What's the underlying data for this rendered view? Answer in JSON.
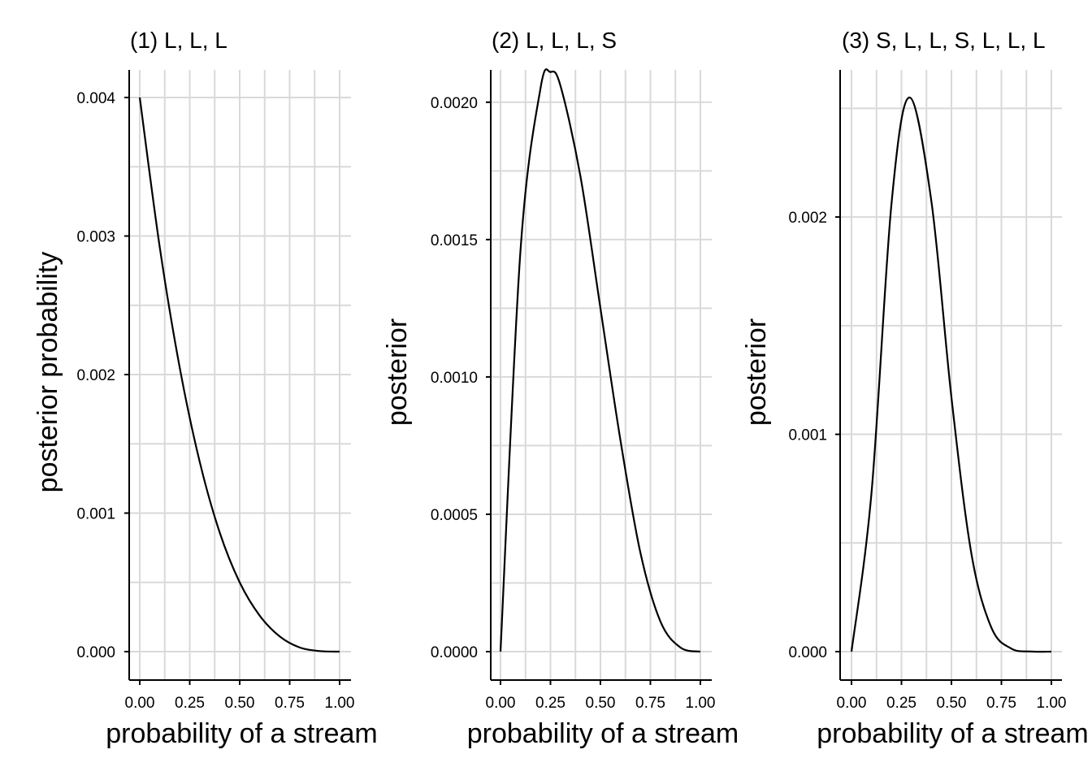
{
  "chart_data": [
    {
      "type": "line",
      "title": "(1) L, L, L",
      "xlabel": "probability of a stream",
      "ylabel": "posterior probability",
      "xlim": [
        0,
        1
      ],
      "ylim": [
        0,
        0.004
      ],
      "x_ticks": [
        0,
        0.25,
        0.5,
        0.75,
        1
      ],
      "x_tick_labels": [
        "0.00",
        "0.25",
        "0.50",
        "0.75",
        "1.00"
      ],
      "y_ticks": [
        0,
        0.001,
        0.002,
        0.003,
        0.004
      ],
      "y_tick_labels": [
        "0.000",
        "0.001",
        "0.002",
        "0.003",
        "0.004"
      ],
      "grid": true,
      "x": [
        0,
        0.1,
        0.2,
        0.3,
        0.4,
        0.5,
        0.6,
        0.7,
        0.8,
        0.9,
        1
      ],
      "y": [
        0.004,
        0.00292,
        0.00205,
        0.00137,
        0.00086,
        0.0005,
        0.00026,
        0.00011,
        3e-05,
        4e-06,
        0
      ]
    },
    {
      "type": "line",
      "title": "(2) L, L, L, S",
      "xlabel": "probability of a stream",
      "ylabel": "posterior",
      "xlim": [
        0,
        1
      ],
      "ylim": [
        0,
        0.0021
      ],
      "x_ticks": [
        0,
        0.25,
        0.5,
        0.75,
        1
      ],
      "x_tick_labels": [
        "0.00",
        "0.25",
        "0.50",
        "0.75",
        "1.00"
      ],
      "y_ticks": [
        0,
        0.0005,
        0.001,
        0.0015,
        0.002
      ],
      "y_tick_labels": [
        "0.0000",
        "0.0005",
        "0.0010",
        "0.0015",
        "0.0020"
      ],
      "grid": true,
      "x": [
        0,
        0.1,
        0.2,
        0.25,
        0.3,
        0.4,
        0.5,
        0.6,
        0.7,
        0.8,
        0.9,
        1
      ],
      "y": [
        0,
        0.00146,
        0.00205,
        0.00211,
        0.00206,
        0.00173,
        0.00125,
        0.00077,
        0.00036,
        0.00011,
        1.5e-05,
        0
      ]
    },
    {
      "type": "line",
      "title": "(3) S, L, L, S, L, L, L",
      "xlabel": "probability of a stream",
      "ylabel": "posterior",
      "xlim": [
        0,
        1
      ],
      "ylim": [
        0,
        0.00255
      ],
      "x_ticks": [
        0,
        0.25,
        0.5,
        0.75,
        1
      ],
      "x_tick_labels": [
        "0.00",
        "0.25",
        "0.50",
        "0.75",
        "1.00"
      ],
      "y_ticks": [
        0,
        0.001,
        0.002
      ],
      "y_tick_labels": [
        "0.000",
        "0.001",
        "0.002"
      ],
      "grid": true,
      "x": [
        0,
        0.1,
        0.2,
        0.29,
        0.4,
        0.5,
        0.6,
        0.7,
        0.8,
        0.9,
        1
      ],
      "y": [
        0,
        0.00073,
        0.00206,
        0.00255,
        0.00207,
        0.00117,
        0.00045,
        0.00011,
        1.4e-05,
        5e-07,
        0
      ]
    }
  ]
}
